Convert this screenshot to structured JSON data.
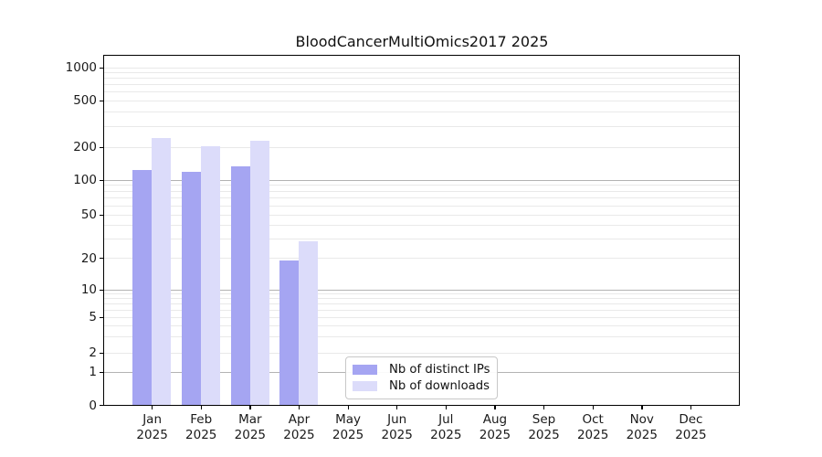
{
  "chart_data": {
    "type": "bar",
    "title": "BloodCancerMultiOmics2017 2025",
    "categories": [
      "Jan 2025",
      "Feb 2025",
      "Mar 2025",
      "Apr 2025",
      "May 2025",
      "Jun 2025",
      "Jul 2025",
      "Aug 2025",
      "Sep 2025",
      "Oct 2025",
      "Nov 2025",
      "Dec 2025"
    ],
    "series": [
      {
        "name": "Nb of distinct IPs",
        "color": "#a5a5f2",
        "values": [
          125,
          120,
          135,
          19,
          null,
          null,
          null,
          null,
          null,
          null,
          null,
          null
        ]
      },
      {
        "name": "Nb of downloads",
        "color": "#dcdcfa",
        "values": [
          240,
          205,
          230,
          29,
          null,
          null,
          null,
          null,
          null,
          null,
          null,
          null
        ]
      }
    ],
    "yscale": "symlog",
    "yticks": [
      0,
      1,
      2,
      5,
      10,
      20,
      50,
      100,
      200,
      500,
      1000
    ],
    "ylim": [
      0,
      1400
    ],
    "xlabel": "",
    "ylabel": "",
    "grid": true,
    "legend_position": "lower center-left inside plot"
  }
}
